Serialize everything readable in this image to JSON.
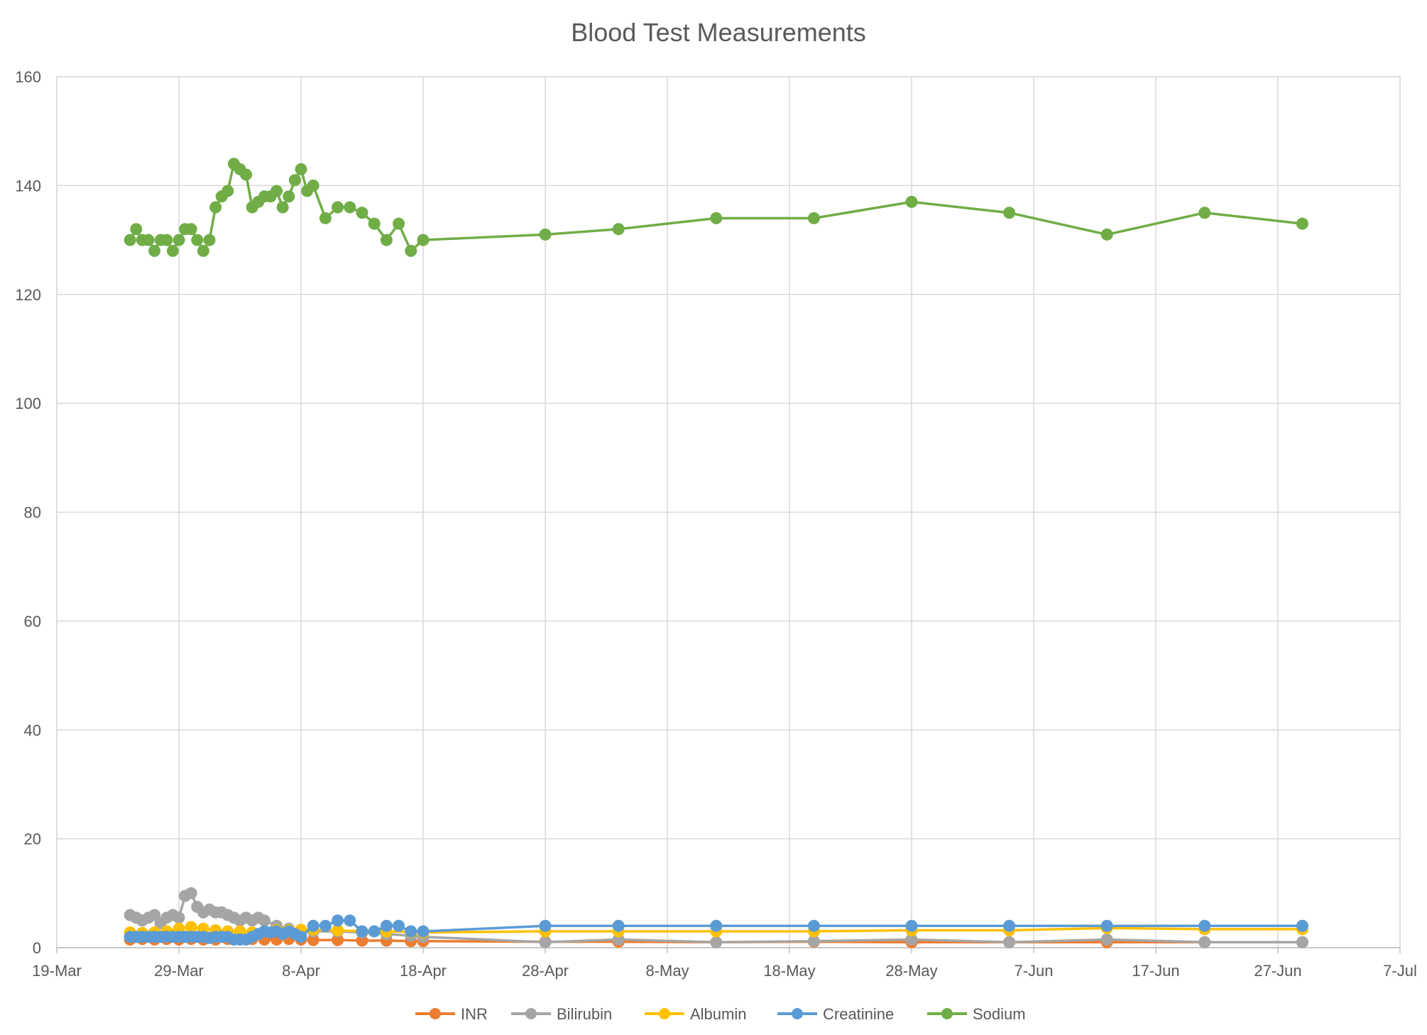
{
  "chart_data": {
    "type": "line",
    "title": "Blood Test Measurements",
    "xlabel": "",
    "ylabel": "",
    "ylim": [
      0,
      160
    ],
    "xlim": [
      "19-Mar",
      "7-Jul"
    ],
    "x_tick_labels": [
      "19-Mar",
      "29-Mar",
      "8-Apr",
      "18-Apr",
      "28-Apr",
      "8-May",
      "18-May",
      "28-May",
      "7-Jun",
      "17-Jun",
      "27-Jun",
      "7-Jul"
    ],
    "y_tick_labels": [
      "0",
      "20",
      "40",
      "60",
      "80",
      "100",
      "120",
      "140",
      "160"
    ],
    "grid": true,
    "legend_position": "bottom",
    "series": [
      {
        "name": "INR",
        "color": "#ED7D31",
        "x": [
          "25-Mar",
          "26-Mar",
          "27-Mar",
          "28-Mar",
          "29-Mar",
          "30-Mar",
          "31-Mar",
          "1-Apr",
          "2-Apr",
          "3-Apr",
          "4-Apr",
          "5-Apr",
          "6-Apr",
          "7-Apr",
          "8-Apr",
          "9-Apr",
          "11-Apr",
          "13-Apr",
          "15-Apr",
          "17-Apr",
          "18-Apr",
          "28-Apr",
          "4-May",
          "12-May",
          "20-May",
          "28-May",
          "5-Jun",
          "13-Jun",
          "21-Jun",
          "29-Jun"
        ],
        "y": [
          1.5,
          1.6,
          1.5,
          1.6,
          1.5,
          1.6,
          1.5,
          1.5,
          1.6,
          1.5,
          1.6,
          1.5,
          1.5,
          1.6,
          1.5,
          1.4,
          1.4,
          1.3,
          1.3,
          1.2,
          1.2,
          1.1,
          1.1,
          1.0,
          1.1,
          1.0,
          1.0,
          1.0,
          1.0,
          1.0
        ]
      },
      {
        "name": "Bilirubin",
        "color": "#A5A5A5",
        "x": [
          "25-Mar",
          "25.5-Mar",
          "26-Mar",
          "26.5-Mar",
          "27-Mar",
          "27.5-Mar",
          "28-Mar",
          "28.5-Mar",
          "29-Mar",
          "29.5-Mar",
          "30-Mar",
          "30.5-Mar",
          "31-Mar",
          "31.5-Mar",
          "1-Apr",
          "1.5-Apr",
          "2-Apr",
          "2.5-Apr",
          "3-Apr",
          "3.5-Apr",
          "4-Apr",
          "4.5-Apr",
          "5-Apr",
          "6-Apr",
          "7-Apr",
          "8-Apr",
          "9-Apr",
          "11-Apr",
          "13-Apr",
          "15-Apr",
          "17-Apr",
          "18-Apr",
          "28-Apr",
          "4-May",
          "12-May",
          "20-May",
          "28-May",
          "5-Jun",
          "13-Jun",
          "21-Jun",
          "29-Jun"
        ],
        "y": [
          6,
          5.5,
          5,
          5.5,
          6,
          4.5,
          5.5,
          6,
          5.5,
          9.5,
          10,
          7.5,
          6.5,
          7,
          6.5,
          6.5,
          6,
          5.5,
          5,
          5.5,
          5,
          5.5,
          5,
          4,
          3.5,
          3,
          3,
          3,
          2.8,
          2.5,
          2.2,
          2,
          1,
          1.5,
          1,
          1.2,
          1.5,
          1,
          1.5,
          1,
          1
        ]
      },
      {
        "name": "Albumin",
        "color": "#FFC000",
        "x": [
          "25-Mar",
          "26-Mar",
          "27-Mar",
          "28-Mar",
          "29-Mar",
          "30-Mar",
          "31-Mar",
          "1-Apr",
          "2-Apr",
          "3-Apr",
          "4-Apr",
          "5-Apr",
          "6-Apr",
          "7-Apr",
          "8-Apr",
          "9-Apr",
          "11-Apr",
          "13-Apr",
          "15-Apr",
          "17-Apr",
          "18-Apr",
          "28-Apr",
          "4-May",
          "12-May",
          "20-May",
          "28-May",
          "5-Jun",
          "13-Jun",
          "21-Jun",
          "29-Jun"
        ],
        "y": [
          2.8,
          2.7,
          2.8,
          3,
          3.5,
          3.8,
          3.5,
          3.2,
          3,
          3,
          2.8,
          3,
          3.2,
          3.2,
          3.3,
          3.3,
          3.2,
          3,
          3,
          2.9,
          2.8,
          3,
          3,
          3,
          3,
          3.2,
          3.2,
          3.6,
          3.4,
          3.4
        ]
      },
      {
        "name": "Creatinine",
        "color": "#5B9BD5",
        "x": [
          "25-Mar",
          "25.5-Mar",
          "26-Mar",
          "26.5-Mar",
          "27-Mar",
          "27.5-Mar",
          "28-Mar",
          "28.5-Mar",
          "29-Mar",
          "29.5-Mar",
          "30-Mar",
          "30.5-Mar",
          "31-Mar",
          "31.5-Mar",
          "1-Apr",
          "1.5-Apr",
          "2-Apr",
          "2.5-Apr",
          "3-Apr",
          "3.5-Apr",
          "4-Apr",
          "4.5-Apr",
          "5-Apr",
          "5.5-Apr",
          "6-Apr",
          "6.5-Apr",
          "7-Apr",
          "7.5-Apr",
          "8-Apr",
          "9-Apr",
          "10-Apr",
          "11-Apr",
          "12-Apr",
          "13-Apr",
          "14-Apr",
          "15-Apr",
          "16-Apr",
          "17-Apr",
          "18-Apr",
          "28-Apr",
          "4-May",
          "12-May",
          "20-May",
          "28-May",
          "5-Jun",
          "13-Jun",
          "21-Jun",
          "29-Jun"
        ],
        "y": [
          2,
          2,
          2,
          2,
          2,
          2,
          2,
          2,
          2,
          2,
          2,
          2,
          2,
          1.8,
          2,
          2,
          2,
          1.5,
          1.5,
          1.5,
          2,
          2.5,
          3,
          2.8,
          3,
          2.5,
          3,
          2.5,
          2,
          4,
          4,
          5,
          5,
          3,
          3,
          4,
          4,
          3,
          3,
          4,
          4,
          4,
          4,
          4,
          4,
          4,
          4,
          4
        ]
      },
      {
        "name": "Sodium",
        "color": "#70AD47",
        "x": [
          "25-Mar",
          "25.5-Mar",
          "26-Mar",
          "26.5-Mar",
          "27-Mar",
          "27.5-Mar",
          "28-Mar",
          "28.5-Mar",
          "29-Mar",
          "29.5-Mar",
          "30-Mar",
          "30.5-Mar",
          "31-Mar",
          "31.5-Mar",
          "1-Apr",
          "1.5-Apr",
          "2-Apr",
          "2.5-Apr",
          "3-Apr",
          "3.5-Apr",
          "4-Apr",
          "4.5-Apr",
          "5-Apr",
          "5.5-Apr",
          "6-Apr",
          "6.5-Apr",
          "7-Apr",
          "7.5-Apr",
          "8-Apr",
          "8.5-Apr",
          "9-Apr",
          "10-Apr",
          "11-Apr",
          "12-Apr",
          "13-Apr",
          "14-Apr",
          "15-Apr",
          "16-Apr",
          "17-Apr",
          "18-Apr",
          "28-Apr",
          "4-May",
          "12-May",
          "20-May",
          "28-May",
          "5-Jun",
          "13-Jun",
          "21-Jun",
          "29-Jun"
        ],
        "y": [
          130,
          132,
          130,
          130,
          128,
          130,
          130,
          128,
          130,
          132,
          132,
          130,
          128,
          130,
          136,
          138,
          139,
          144,
          143,
          142,
          136,
          137,
          138,
          138,
          139,
          136,
          138,
          141,
          143,
          139,
          140,
          134,
          136,
          136,
          135,
          133,
          130,
          133,
          128,
          130,
          131,
          132,
          134,
          134,
          137,
          135,
          131,
          135,
          133
        ]
      }
    ]
  }
}
